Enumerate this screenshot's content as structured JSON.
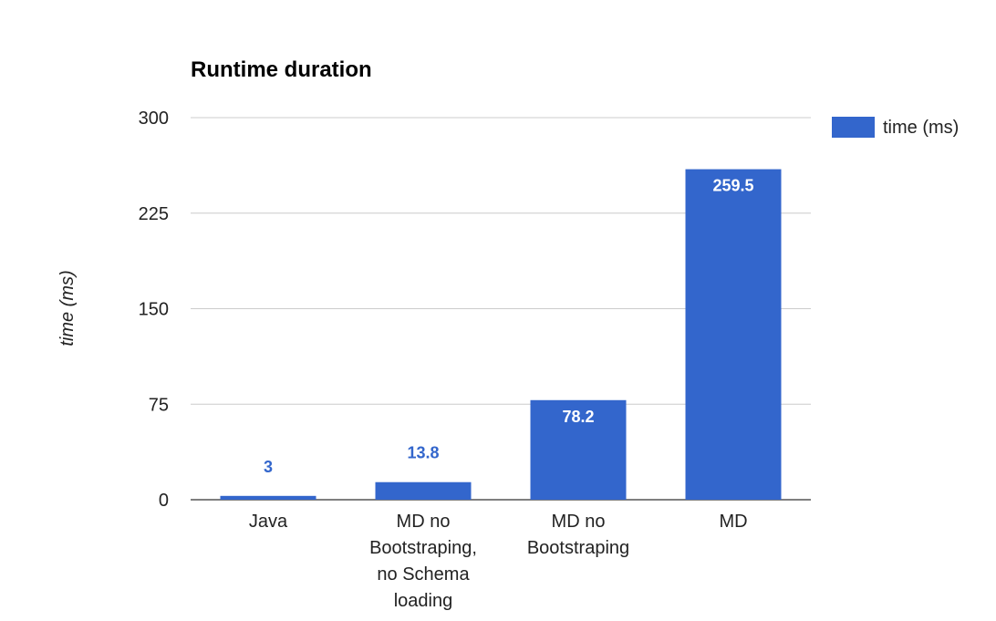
{
  "chart_data": {
    "type": "bar",
    "title": "Runtime duration",
    "xlabel": "",
    "ylabel": "time (ms)",
    "categories": [
      [
        "Java"
      ],
      [
        "MD no",
        "Bootstraping,",
        "no Schema",
        "loading"
      ],
      [
        "MD no",
        "Bootstraping"
      ],
      [
        "MD"
      ]
    ],
    "series": [
      {
        "name": "time (ms)",
        "values": [
          3,
          13.8,
          78.2,
          259.5
        ],
        "color": "#3366cc"
      }
    ],
    "data_labels": [
      "3",
      "13.8",
      "78.2",
      "259.5"
    ],
    "ylim": [
      0,
      300
    ],
    "yticks": [
      0,
      75,
      150,
      225,
      300
    ],
    "grid": true,
    "legend_position": "right"
  }
}
